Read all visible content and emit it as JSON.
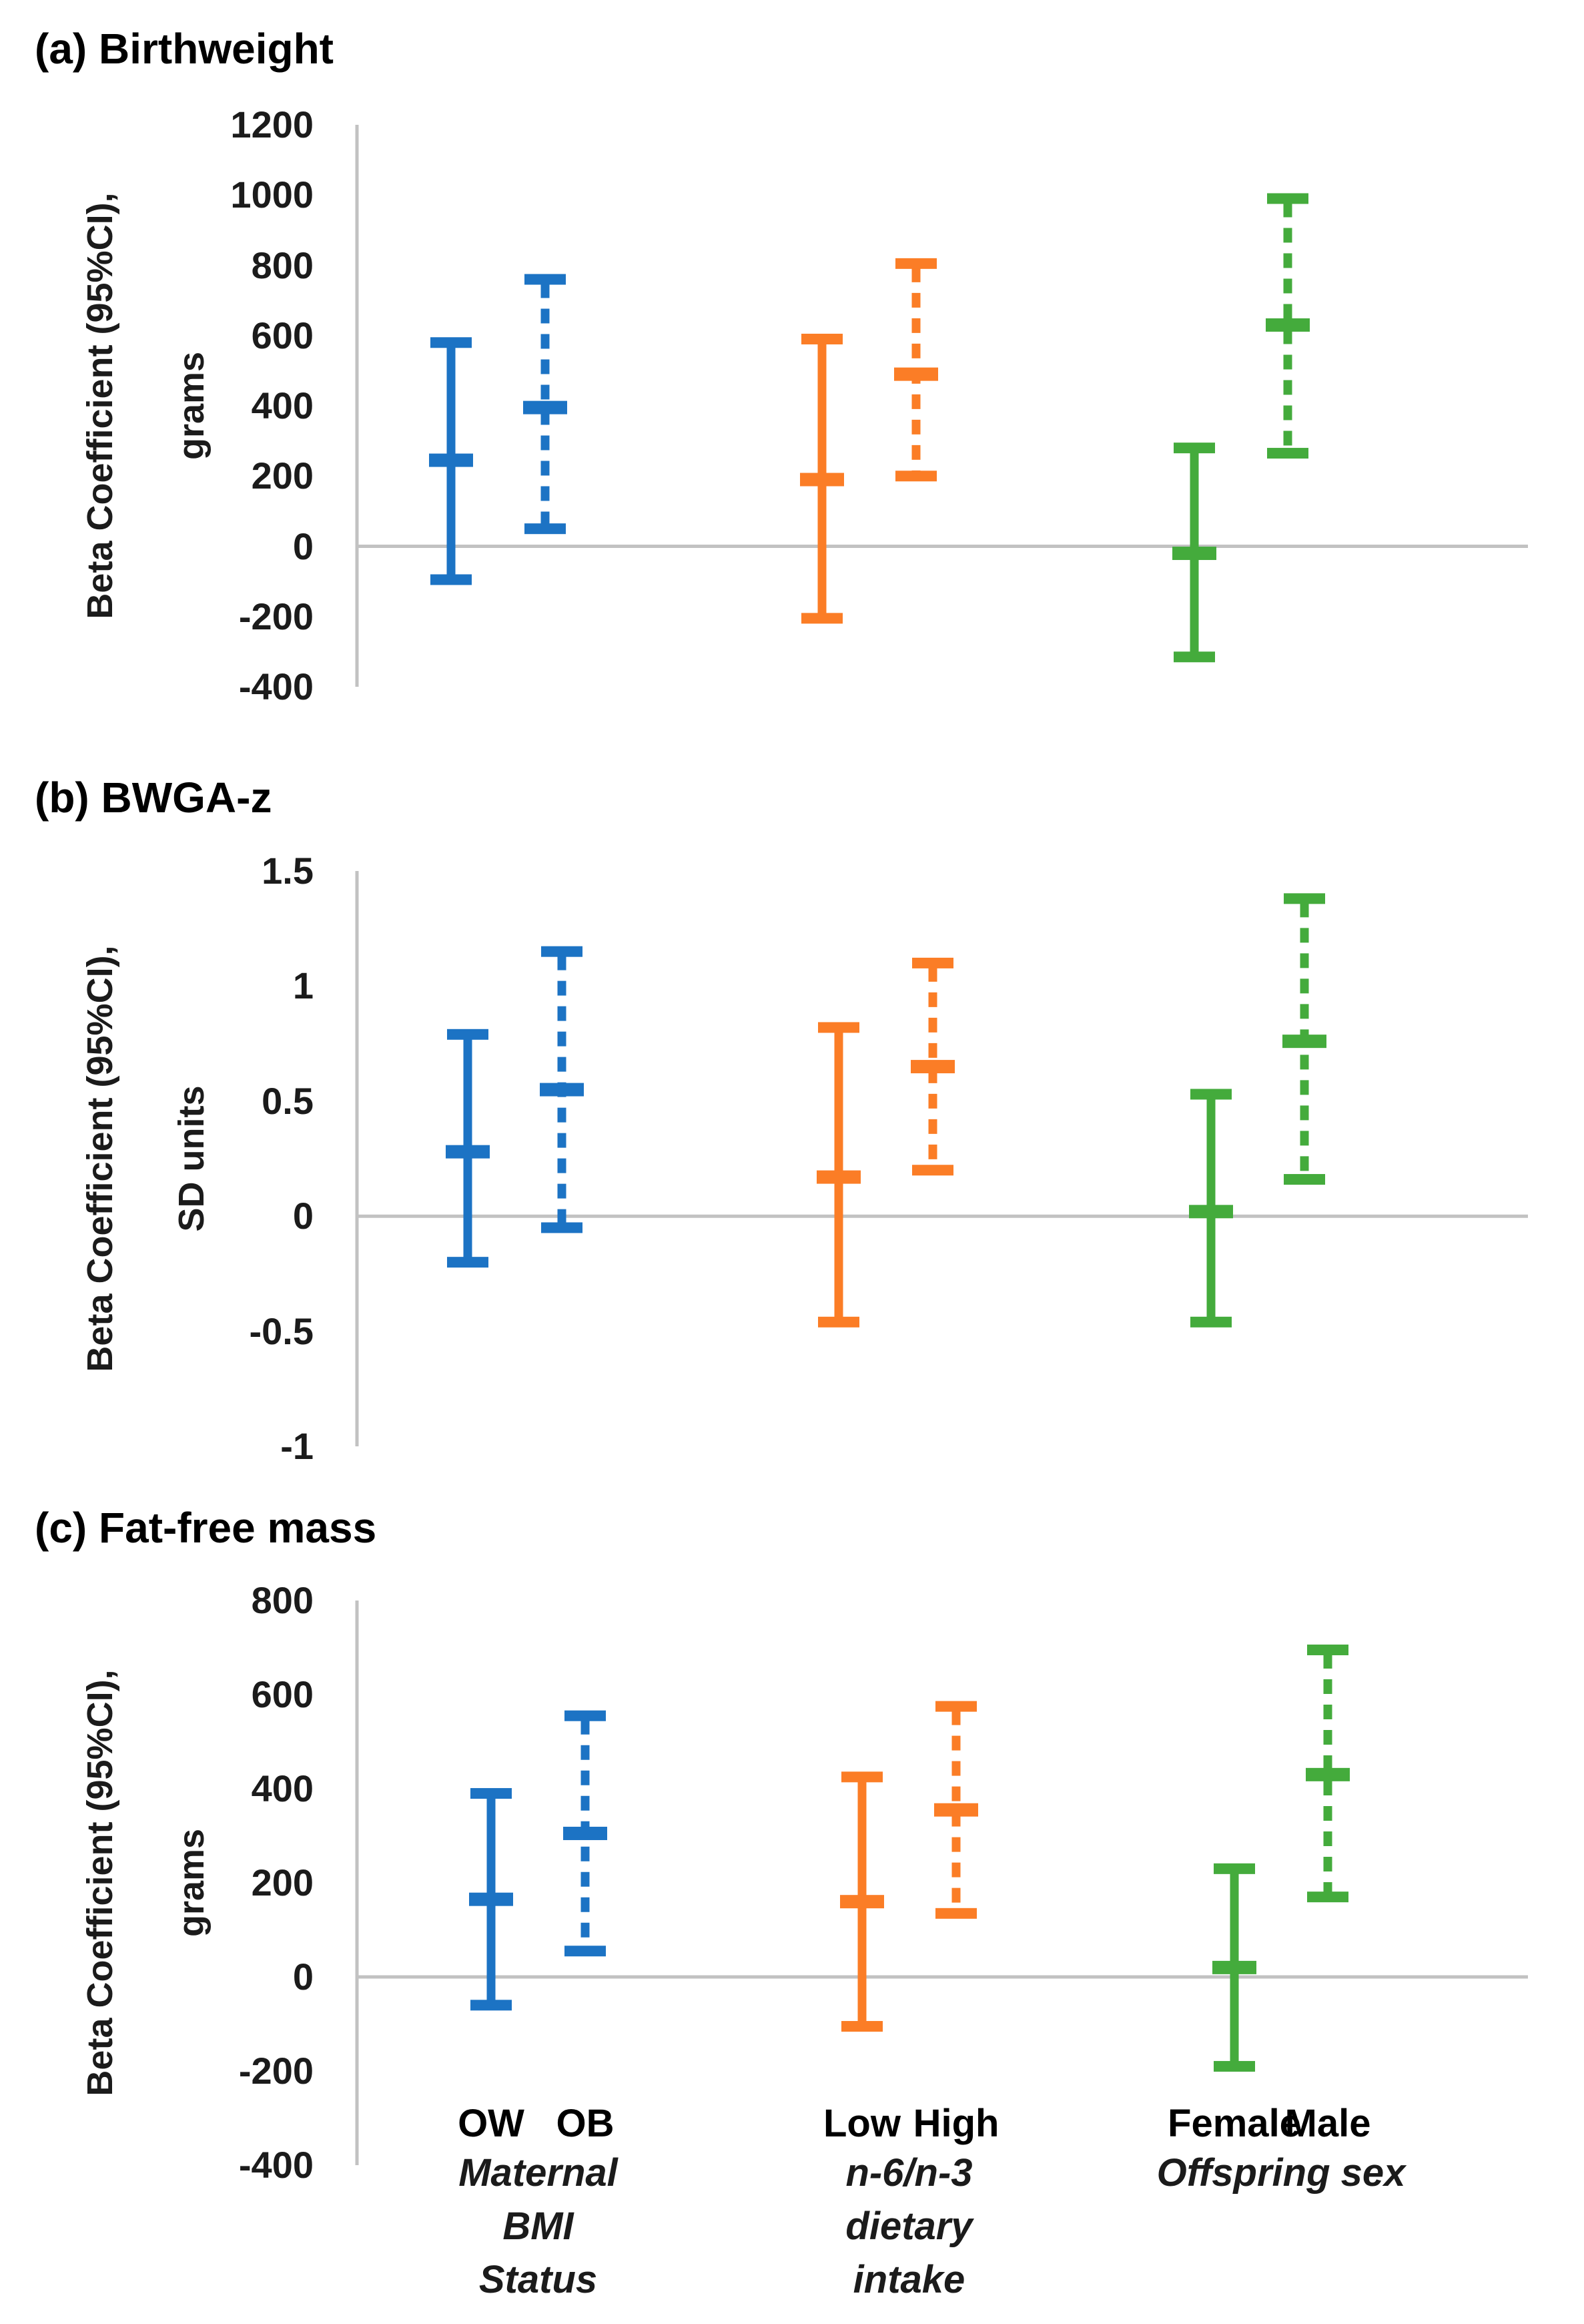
{
  "chart_data": [
    {
      "type": "errorbar",
      "title": "(a) Birthweight",
      "ylabel": "Beta Coefficient (95%CI),",
      "yunit": "grams",
      "ylim": [
        -400,
        1200
      ],
      "yticks": [
        1200,
        1000,
        800,
        600,
        400,
        200,
        0,
        -200,
        -400
      ],
      "zero_line": true,
      "legend": "none",
      "series": [
        {
          "label": "OW",
          "group": "Maternal BMI Status",
          "style": "solid",
          "color_key": "blue",
          "center": 245,
          "ci_low": -95,
          "ci_high": 580
        },
        {
          "label": "OB",
          "group": "Maternal BMI Status",
          "style": "dashed",
          "color_key": "blue",
          "center": 395,
          "ci_low": 50,
          "ci_high": 760
        },
        {
          "label": "Low",
          "group": "n-6/n-3 dietary intake",
          "style": "solid",
          "color_key": "orange",
          "center": 190,
          "ci_low": -205,
          "ci_high": 590
        },
        {
          "label": "High",
          "group": "n-6/n-3 dietary intake",
          "style": "dashed",
          "color_key": "orange",
          "center": 490,
          "ci_low": 200,
          "ci_high": 805
        },
        {
          "label": "Female",
          "group": "Offspring sex",
          "style": "solid",
          "color_key": "green",
          "center": -20,
          "ci_low": -315,
          "ci_high": 280
        },
        {
          "label": "Male",
          "group": "Offspring sex",
          "style": "dashed",
          "color_key": "green",
          "center": 630,
          "ci_low": 265,
          "ci_high": 990
        }
      ]
    },
    {
      "type": "errorbar",
      "title": "(b) BWGA-z",
      "ylabel": "Beta Coefficient (95%CI),",
      "yunit": "SD units",
      "ylim": [
        -1,
        1.5
      ],
      "yticks": [
        1.5,
        1,
        0.5,
        0,
        -0.5,
        -1
      ],
      "zero_line": true,
      "legend": "none",
      "series": [
        {
          "label": "OW",
          "group": "Maternal BMI Status",
          "style": "solid",
          "color_key": "blue",
          "center": 0.28,
          "ci_low": -0.2,
          "ci_high": 0.79
        },
        {
          "label": "OB",
          "group": "Maternal BMI Status",
          "style": "dashed",
          "color_key": "blue",
          "center": 0.55,
          "ci_low": -0.05,
          "ci_high": 1.15
        },
        {
          "label": "Low",
          "group": "n-6/n-3 dietary intake",
          "style": "solid",
          "color_key": "orange",
          "center": 0.17,
          "ci_low": -0.46,
          "ci_high": 0.82
        },
        {
          "label": "High",
          "group": "n-6/n-3 dietary intake",
          "style": "dashed",
          "color_key": "orange",
          "center": 0.65,
          "ci_low": 0.2,
          "ci_high": 1.1
        },
        {
          "label": "Female",
          "group": "Offspring sex",
          "style": "solid",
          "color_key": "green",
          "center": 0.02,
          "ci_low": -0.46,
          "ci_high": 0.53
        },
        {
          "label": "Male",
          "group": "Offspring sex",
          "style": "dashed",
          "color_key": "green",
          "center": 0.76,
          "ci_low": 0.16,
          "ci_high": 1.38
        }
      ]
    },
    {
      "type": "errorbar",
      "title": "(c) Fat-free mass",
      "ylabel": "Beta Coefficient (95%CI),",
      "yunit": "grams",
      "ylim": [
        -400,
        800
      ],
      "yticks": [
        800,
        600,
        400,
        200,
        0,
        -200,
        -400
      ],
      "zero_line": true,
      "legend": "none",
      "series": [
        {
          "label": "OW",
          "group": "Maternal BMI Status",
          "style": "solid",
          "color_key": "blue",
          "center": 165,
          "ci_low": -60,
          "ci_high": 390
        },
        {
          "label": "OB",
          "group": "Maternal BMI Status",
          "style": "dashed",
          "color_key": "blue",
          "center": 305,
          "ci_low": 55,
          "ci_high": 555
        },
        {
          "label": "Low",
          "group": "n-6/n-3 dietary intake",
          "style": "solid",
          "color_key": "orange",
          "center": 160,
          "ci_low": -105,
          "ci_high": 425
        },
        {
          "label": "High",
          "group": "n-6/n-3 dietary intake",
          "style": "dashed",
          "color_key": "orange",
          "center": 355,
          "ci_low": 135,
          "ci_high": 575
        },
        {
          "label": "Female",
          "group": "Offspring sex",
          "style": "solid",
          "color_key": "green",
          "center": 20,
          "ci_low": -190,
          "ci_high": 230
        },
        {
          "label": "Male",
          "group": "Offspring sex",
          "style": "dashed",
          "color_key": "green",
          "center": 430,
          "ci_low": 170,
          "ci_high": 695
        }
      ]
    }
  ],
  "x_axis": {
    "groups": [
      {
        "members": [
          "OW",
          "OB"
        ],
        "caption_lines": [
          "Maternal",
          "BMI",
          "Status"
        ]
      },
      {
        "members": [
          "Low",
          "High"
        ],
        "caption_lines": [
          "n-6/n-3",
          "dietary",
          "intake"
        ]
      },
      {
        "members": [
          "Female",
          "Male"
        ],
        "caption_lines": [
          "Offspring sex"
        ]
      }
    ]
  },
  "colors": {
    "blue": "#1C73C4",
    "orange": "#FB7D26",
    "green": "#44AB3C",
    "axis_line": "#C2C2C2",
    "text": "#1B1B1B"
  }
}
